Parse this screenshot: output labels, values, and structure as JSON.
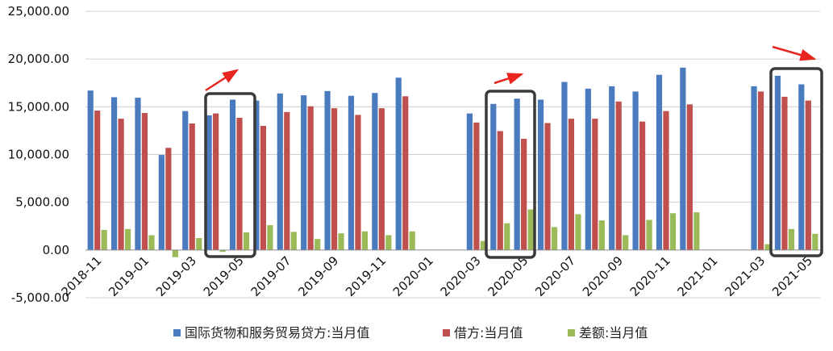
{
  "chart_data": {
    "type": "bar",
    "x_ticks": [
      "2018-11",
      "2019-01",
      "2019-03",
      "2019-05",
      "2019-07",
      "2019-09",
      "2019-11",
      "2020-01",
      "2020-03",
      "2020-05",
      "2020-07",
      "2020-09",
      "2020-11",
      "2021-01",
      "2021-03",
      "2021-05"
    ],
    "y_ticks": [
      "25,000.00",
      "20,000.00",
      "15,000.00",
      "10,000.00",
      "5,000.00",
      "0.00",
      "-5,000.00"
    ],
    "ylim": [
      -5000,
      25000
    ],
    "grid": "horizontal",
    "legend_position": "bottom",
    "categories": [
      "2018-11",
      "2018-12",
      "2019-01",
      "2019-02",
      "2019-03",
      "2019-04",
      "2019-05",
      "2019-06",
      "2019-07",
      "2019-08",
      "2019-09",
      "2019-10",
      "2019-11",
      "2019-12",
      "2020-01",
      "2020-02",
      "2020-03",
      "2020-04",
      "2020-05",
      "2020-06",
      "2020-07",
      "2020-08",
      "2020-09",
      "2020-10",
      "2020-11",
      "2020-12",
      "2021-01",
      "2021-02",
      "2021-03",
      "2021-04",
      "2021-05"
    ],
    "series": [
      {
        "name": "国际货物和服务贸易贷方:当月值",
        "color": "#4a7bbf",
        "values": [
          16700,
          16000,
          15950,
          9950,
          14550,
          14100,
          15750,
          15650,
          16400,
          16200,
          16650,
          16150,
          16450,
          18050,
          null,
          null,
          14300,
          15300,
          15850,
          15750,
          17600,
          16900,
          17150,
          16600,
          18350,
          19100,
          null,
          null,
          17150,
          18250,
          17350
        ]
      },
      {
        "name": "借方:当月值",
        "color": "#c0504d",
        "values": [
          14600,
          13750,
          14350,
          10700,
          13250,
          14300,
          13850,
          13000,
          14450,
          15050,
          14850,
          14150,
          14850,
          16100,
          null,
          null,
          13350,
          12450,
          11650,
          13300,
          13750,
          13750,
          15550,
          13450,
          14550,
          15250,
          null,
          null,
          16600,
          16050,
          15650
        ]
      },
      {
        "name": "差额:当月值",
        "color": "#9bbb59",
        "values": [
          2100,
          2200,
          1550,
          -750,
          1250,
          -200,
          1850,
          2600,
          1900,
          1150,
          1750,
          1950,
          1550,
          1950,
          null,
          null,
          950,
          2800,
          4250,
          2400,
          3750,
          3100,
          1550,
          3150,
          3850,
          3950,
          null,
          null,
          600,
          2200,
          1700
        ]
      }
    ]
  },
  "annotations": {
    "arrow_color": "#e8251f",
    "box_color": "#3a3a3a"
  }
}
